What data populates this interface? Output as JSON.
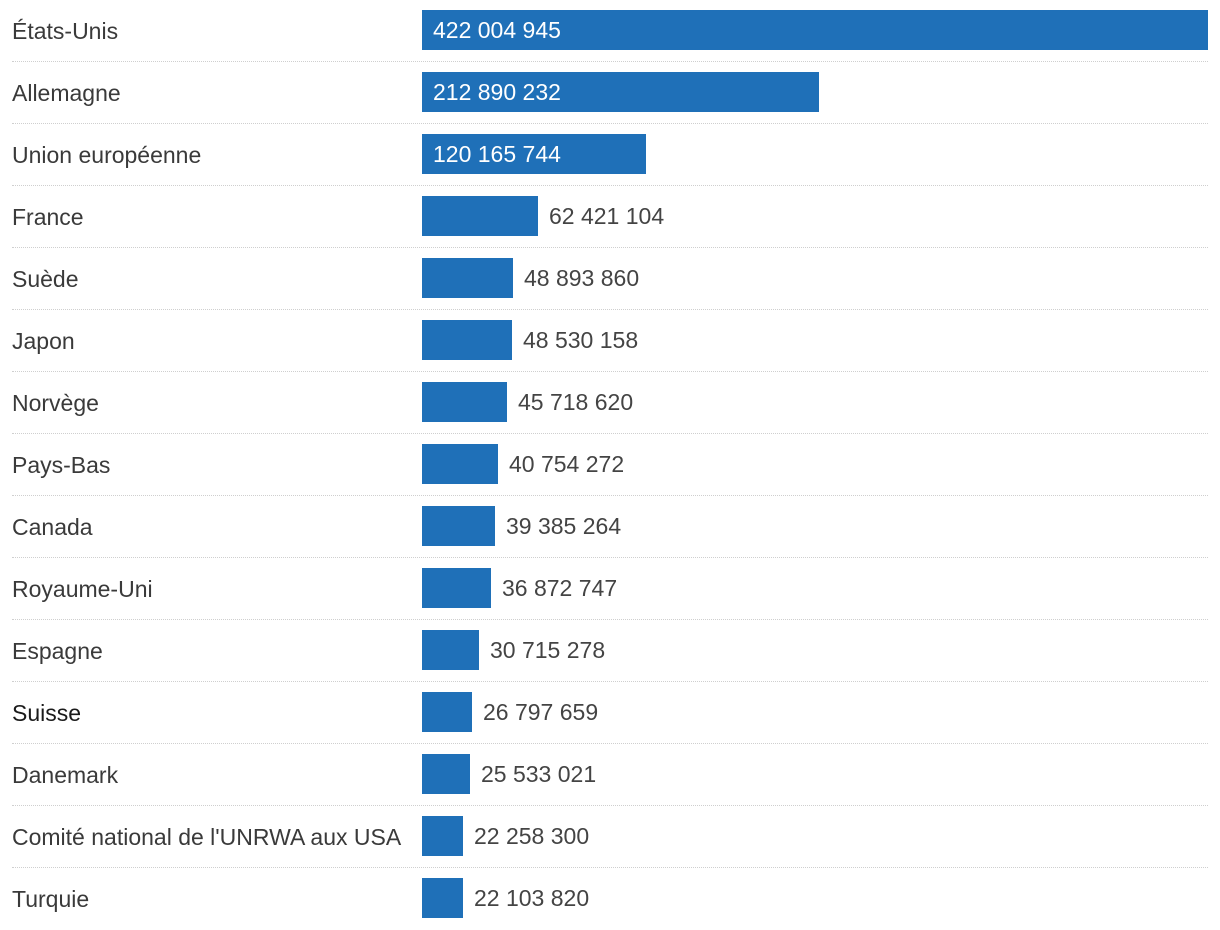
{
  "chart_data": {
    "type": "bar",
    "orientation": "horizontal",
    "title": "",
    "xlabel": "",
    "ylabel": "",
    "xlim": [
      0,
      422004945
    ],
    "grid": false,
    "bar_color": "#1f70b8",
    "highlight_category": "Suisse",
    "categories": [
      "États-Unis",
      "Allemagne",
      "Union européenne",
      "France",
      "Suède",
      "Japon",
      "Norvège",
      "Pays-Bas",
      "Canada",
      "Royaume-Uni",
      "Espagne",
      "Suisse",
      "Danemark",
      "Comité national de l'UNRWA aux USA",
      "Turquie"
    ],
    "values": [
      422004945,
      212890232,
      120165744,
      62421104,
      48893860,
      48530158,
      45718620,
      40754272,
      39385264,
      36872747,
      30715278,
      26797659,
      25533021,
      22258300,
      22103820
    ],
    "value_labels": [
      "422 004 945",
      "212 890 232",
      "120 165 744",
      "62 421 104",
      "48 893 860",
      "48 530 158",
      "45 718 620",
      "40 754 272",
      "39 385 264",
      "36 872 747",
      "30 715 278",
      "26 797 659",
      "25 533 021",
      "22 258 300",
      "22 103 820"
    ]
  }
}
